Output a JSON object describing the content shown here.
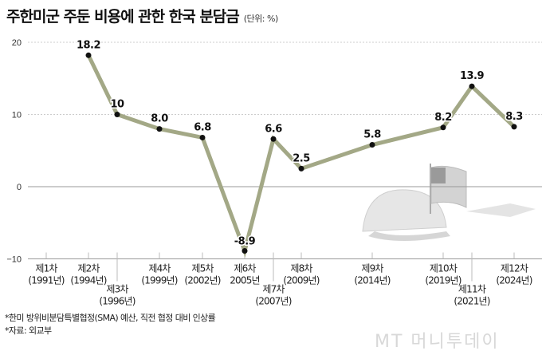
{
  "title": "주한미군 주둔 비용에 관한 한국 분담금",
  "unit": "(단위: %)",
  "notes": [
    "*한미 방위비분담특별협정(SMA) 예산, 직전 협정 대비 인상률",
    "*자료: 외교부"
  ],
  "logo": "MT 머니투데이",
  "chart_data": {
    "type": "line",
    "title": "주한미군 주둔 비용에 관한 한국 분담금",
    "ylabel": "(단위: %)",
    "ylim": [
      -10,
      20
    ],
    "yticks": [
      -10,
      0,
      10,
      20
    ],
    "grid": true,
    "line_color": "#a3a886",
    "categories": [
      {
        "label": "제1차",
        "year": "(1991년)"
      },
      {
        "label": "제2차",
        "year": "(1994년)"
      },
      {
        "label": "제3차",
        "year": "(1996년)"
      },
      {
        "label": "제4차",
        "year": "(1999년)"
      },
      {
        "label": "제5차",
        "year": "(2002년)"
      },
      {
        "label": "제6차",
        "year": "2005년"
      },
      {
        "label": "제7차",
        "year": "(2007년)"
      },
      {
        "label": "제8차",
        "year": "(2009년)"
      },
      {
        "label": "제9차",
        "year": "(2014년)"
      },
      {
        "label": "제10차",
        "year": "(2019년)"
      },
      {
        "label": "제11차",
        "year": "(2021년)"
      },
      {
        "label": "제12차",
        "year": "(2024년)"
      }
    ],
    "values": [
      null,
      18.2,
      10,
      8.0,
      6.8,
      -8.9,
      6.6,
      2.5,
      5.8,
      8.2,
      13.9,
      8.3
    ],
    "data_labels": [
      "",
      "18.2",
      "10",
      "8.0",
      "6.8",
      "-8.9",
      "6.6",
      "2.5",
      "5.8",
      "8.2",
      "13.9",
      "8.3"
    ]
  }
}
